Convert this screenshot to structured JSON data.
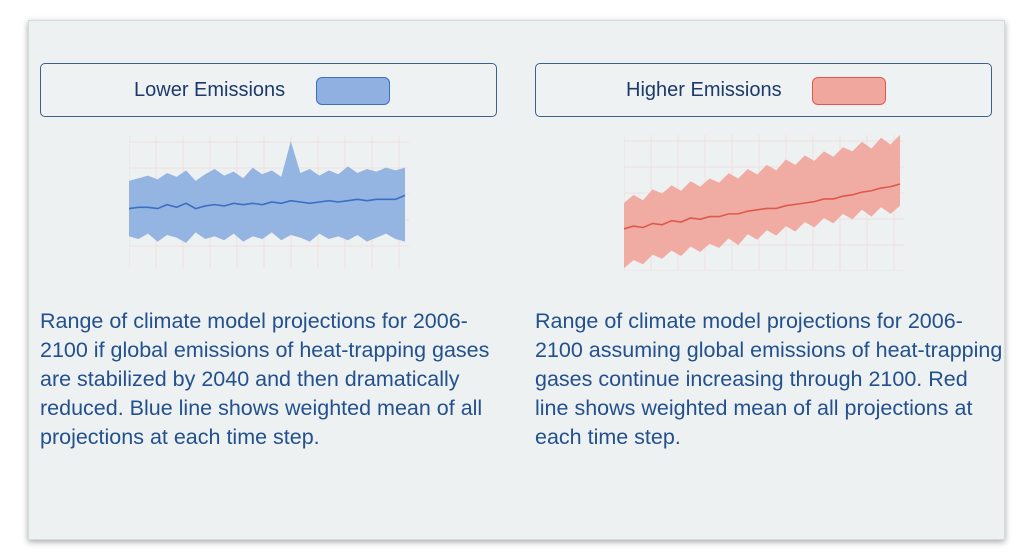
{
  "panels": [
    {
      "description": "Range of climate model projections for 2006-2100 if global emissions of heat-trapping gases are stabilized by 2040 and then dramatically reduced. Blue line shows weighted mean of all projections at each time step."
    },
    {
      "description": "Range of climate model projections for 2006-2100 assuming global emissions of heat-trapping gases continue increasing through 2100. Red line shows weighted mean of all projections at each time step."
    }
  ],
  "chart_data": [
    {
      "type": "band",
      "ylim": [
        0,
        100
      ],
      "grid": true,
      "series": [
        {
          "name": "Lower Emissions",
          "color": "#8fb0e0",
          "line_color": "#3a6fc4",
          "upper": [
            66,
            68,
            70,
            67,
            72,
            69,
            74,
            66,
            71,
            75,
            70,
            73,
            68,
            76,
            71,
            74,
            69,
            96,
            72,
            75,
            70,
            74,
            71,
            77,
            72,
            75,
            73,
            76,
            74,
            76
          ],
          "lower": [
            24,
            22,
            26,
            20,
            25,
            23,
            19,
            27,
            22,
            24,
            21,
            26,
            20,
            24,
            22,
            27,
            21,
            25,
            23,
            20,
            26,
            22,
            24,
            21,
            25,
            20,
            23,
            26,
            22,
            20
          ],
          "values": [
            45,
            46,
            46,
            45,
            48,
            46,
            49,
            45,
            47,
            48,
            47,
            49,
            48,
            49,
            48,
            50,
            49,
            51,
            50,
            49,
            50,
            51,
            50,
            51,
            52,
            51,
            52,
            52,
            52,
            55
          ]
        }
      ]
    },
    {
      "type": "band",
      "ylim": [
        0,
        100
      ],
      "grid": true,
      "series": [
        {
          "name": "Higher Emissions",
          "color": "#f0a89e",
          "line_color": "#e0584c",
          "upper": [
            50,
            56,
            52,
            60,
            57,
            63,
            59,
            66,
            62,
            68,
            65,
            72,
            68,
            75,
            71,
            78,
            74,
            82,
            78,
            85,
            81,
            88,
            84,
            91,
            88,
            95,
            90,
            98,
            93,
            100
          ],
          "lower": [
            2,
            8,
            5,
            12,
            9,
            15,
            11,
            18,
            14,
            20,
            17,
            24,
            19,
            27,
            23,
            30,
            26,
            33,
            29,
            36,
            32,
            39,
            35,
            42,
            38,
            45,
            40,
            47,
            42,
            48
          ],
          "values": [
            31,
            33,
            32,
            35,
            34,
            37,
            36,
            39,
            38,
            40,
            40,
            42,
            42,
            44,
            45,
            46,
            46,
            48,
            49,
            50,
            51,
            53,
            53,
            55,
            56,
            58,
            59,
            61,
            62,
            64
          ]
        }
      ]
    }
  ]
}
